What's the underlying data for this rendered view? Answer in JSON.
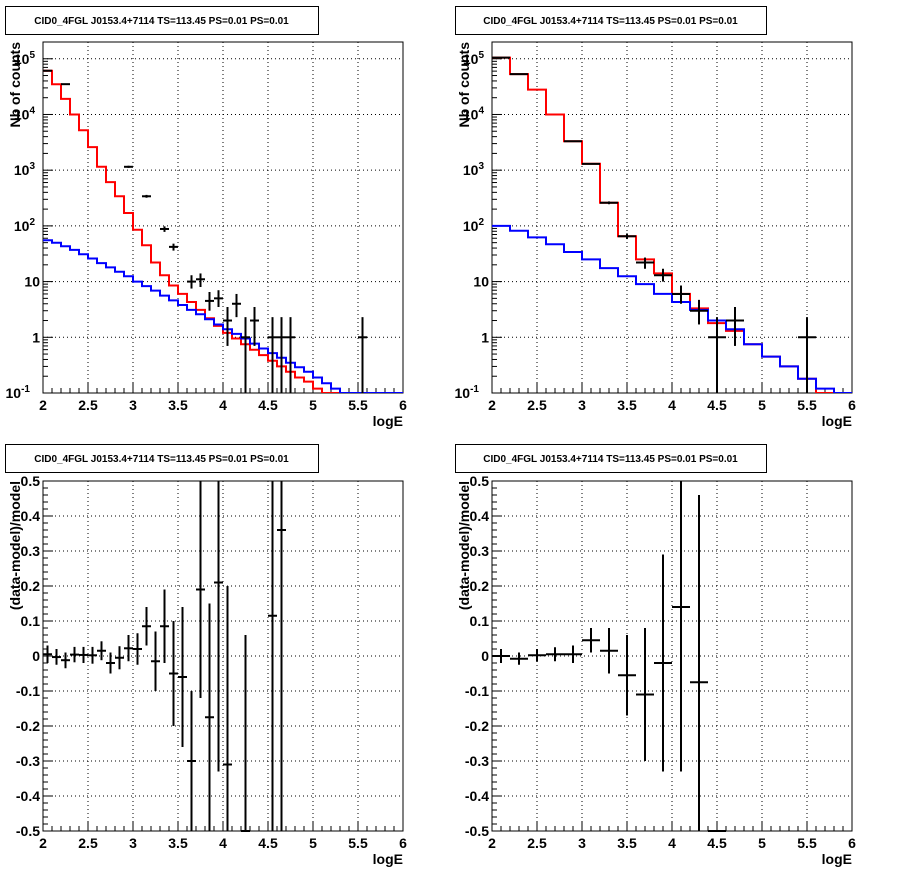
{
  "chart_data": [
    {
      "type": "line",
      "title": "CID0_4FGL J0153.4+7114 TS=113.45 PS=0.01 PS=0.01",
      "xlabel": "logE",
      "ylabel": "Nb of counts",
      "xlim": [
        2,
        6
      ],
      "ylim": [
        0.1,
        200000
      ],
      "yscale": "log",
      "grid": true,
      "xticks": [
        "2",
        "2.5",
        "3",
        "3.5",
        "4",
        "4.5",
        "5",
        "5.5",
        "6"
      ],
      "yticks": [
        {
          "v": 0.1,
          "mant": "10",
          "exp": "-1"
        },
        {
          "v": 1,
          "mant": "1",
          "exp": ""
        },
        {
          "v": 10,
          "mant": "10",
          "exp": ""
        },
        {
          "v": 100,
          "mant": "10",
          "exp": "2"
        },
        {
          "v": 1000,
          "mant": "10",
          "exp": "3"
        },
        {
          "v": 10000,
          "mant": "10",
          "exp": "4"
        },
        {
          "v": 100000,
          "mant": "10",
          "exp": "5"
        }
      ],
      "bin_edges": [
        2.0,
        2.1,
        2.2,
        2.3,
        2.4,
        2.5,
        2.6,
        2.7,
        2.8,
        2.9,
        3.0,
        3.1,
        3.2,
        3.3,
        3.4,
        3.5,
        3.6,
        3.7,
        3.8,
        3.9,
        4.0,
        4.1,
        4.2,
        4.3,
        4.4,
        4.5,
        4.6,
        4.7,
        4.8,
        4.9,
        5.0,
        5.1,
        5.2,
        5.3,
        5.4,
        5.5,
        5.6,
        5.7,
        5.8,
        5.9,
        6.0
      ],
      "series": [
        {
          "color": "#ff0000",
          "values": [
            61000,
            35000,
            19000,
            10000,
            5200,
            2600,
            1150,
            610,
            340,
            170,
            85,
            45,
            22,
            13,
            8.5,
            6,
            4.3,
            3.1,
            2.2,
            1.6,
            1.2,
            0.95,
            0.75,
            0.6,
            0.48,
            0.38,
            0.3,
            0.24,
            0.19,
            0.16,
            0.12,
            0.1,
            0.1
          ]
        },
        {
          "color": "#0000ff",
          "values": [
            55,
            50,
            43,
            37,
            31,
            26,
            21.5,
            18,
            15,
            12.5,
            10,
            8.3,
            6.9,
            5.6,
            4.6,
            3.8,
            3.1,
            2.6,
            2.1,
            1.7,
            1.4,
            1.15,
            0.95,
            0.77,
            0.63,
            0.52,
            0.43,
            0.35,
            0.29,
            0.24,
            0.19,
            0.15,
            0.12,
            0.1,
            0.1,
            0.1,
            0.1,
            0.1,
            0.1,
            0.1
          ]
        }
      ],
      "points": [
        {
          "x": 2.05,
          "y": 61000,
          "lo": 60700,
          "hi": 61300
        },
        {
          "x": 2.25,
          "y": 35000,
          "lo": 34600,
          "hi": 35400
        },
        {
          "x": 2.95,
          "y": 1150,
          "lo": 1100,
          "hi": 1200
        },
        {
          "x": 3.15,
          "y": 340,
          "lo": 320,
          "hi": 360
        },
        {
          "x": 3.35,
          "y": 88,
          "lo": 78,
          "hi": 98
        },
        {
          "x": 3.45,
          "y": 42,
          "lo": 36,
          "hi": 48
        },
        {
          "x": 3.65,
          "y": 10,
          "lo": 7.5,
          "hi": 13
        },
        {
          "x": 3.75,
          "y": 11,
          "lo": 8,
          "hi": 14
        },
        {
          "x": 3.85,
          "y": 4.5,
          "lo": 3,
          "hi": 6.5
        },
        {
          "x": 3.95,
          "y": 5,
          "lo": 3.5,
          "hi": 7
        },
        {
          "x": 4.05,
          "y": 2,
          "lo": 0.7,
          "hi": 3.5
        },
        {
          "x": 4.15,
          "y": 4,
          "lo": 2.3,
          "hi": 6
        },
        {
          "x": 4.25,
          "y": 1,
          "lo": 0.1,
          "hi": 2.3
        },
        {
          "x": 4.35,
          "y": 2,
          "lo": 0.7,
          "hi": 3.5
        },
        {
          "x": 4.55,
          "y": 1,
          "lo": 0.1,
          "hi": 2.3
        },
        {
          "x": 4.65,
          "y": 1,
          "lo": 0.1,
          "hi": 2.3
        },
        {
          "x": 4.75,
          "y": 1,
          "lo": 0.1,
          "hi": 2.3
        },
        {
          "x": 5.55,
          "y": 1,
          "lo": 0.1,
          "hi": 2.3
        }
      ]
    },
    {
      "type": "line",
      "title": "CID0_4FGL J0153.4+7114 TS=113.45 PS=0.01 PS=0.01",
      "xlabel": "logE",
      "ylabel": "Nb of counts",
      "xlim": [
        2,
        6
      ],
      "ylim": [
        0.1,
        200000
      ],
      "yscale": "log",
      "grid": true,
      "xticks": [
        "2",
        "2.5",
        "3",
        "3.5",
        "4",
        "4.5",
        "5",
        "5.5",
        "6"
      ],
      "yticks": [
        {
          "v": 0.1,
          "mant": "10",
          "exp": "-1"
        },
        {
          "v": 1,
          "mant": "1",
          "exp": ""
        },
        {
          "v": 10,
          "mant": "10",
          "exp": ""
        },
        {
          "v": 100,
          "mant": "10",
          "exp": "2"
        },
        {
          "v": 1000,
          "mant": "10",
          "exp": "3"
        },
        {
          "v": 10000,
          "mant": "10",
          "exp": "4"
        },
        {
          "v": 100000,
          "mant": "10",
          "exp": "5"
        }
      ],
      "bin_edges": [
        2.0,
        2.2,
        2.4,
        2.6,
        2.8,
        3.0,
        3.2,
        3.4,
        3.6,
        3.8,
        4.0,
        4.2,
        4.4,
        4.6,
        4.8,
        5.0,
        5.2,
        5.4,
        5.6,
        5.8,
        6.0
      ],
      "series": [
        {
          "color": "#ff0000",
          "values": [
            105000,
            53000,
            28000,
            10000,
            3300,
            1300,
            260,
            65,
            25,
            14,
            6,
            3.3,
            1.8,
            1.3,
            0.75,
            0.45,
            0.3,
            0.18,
            0.1
          ]
        },
        {
          "color": "#0000ff",
          "values": [
            100,
            82,
            62,
            47,
            34,
            25,
            17.5,
            12.5,
            9,
            6,
            4.3,
            3.1,
            2.0,
            1.4,
            0.75,
            0.45,
            0.3,
            0.18,
            0.12,
            0.1
          ]
        }
      ],
      "points": [
        {
          "x": 2.1,
          "y": 105000,
          "lo": 104700,
          "hi": 105300
        },
        {
          "x": 2.3,
          "y": 53000,
          "lo": 52700,
          "hi": 53300
        },
        {
          "x": 2.9,
          "y": 3300,
          "lo": 3250,
          "hi": 3350
        },
        {
          "x": 3.1,
          "y": 1300,
          "lo": 1270,
          "hi": 1330
        },
        {
          "x": 3.3,
          "y": 260,
          "lo": 245,
          "hi": 275
        },
        {
          "x": 3.5,
          "y": 65,
          "lo": 58,
          "hi": 73
        },
        {
          "x": 3.7,
          "y": 22,
          "lo": 17,
          "hi": 27
        },
        {
          "x": 3.9,
          "y": 13,
          "lo": 10,
          "hi": 17
        },
        {
          "x": 4.1,
          "y": 6,
          "lo": 4,
          "hi": 8.5
        },
        {
          "x": 4.3,
          "y": 3,
          "lo": 1.7,
          "hi": 4.7
        },
        {
          "x": 4.5,
          "y": 1,
          "lo": 0.1,
          "hi": 2.3
        },
        {
          "x": 4.7,
          "y": 2,
          "lo": 0.7,
          "hi": 3.5
        },
        {
          "x": 5.5,
          "y": 1,
          "lo": 0.1,
          "hi": 2.3
        }
      ]
    },
    {
      "type": "scatter",
      "title": "CID0_4FGL J0153.4+7114 TS=113.45 PS=0.01 PS=0.01",
      "xlabel": "logE",
      "ylabel": "(data-model)/model",
      "xlim": [
        2,
        6
      ],
      "ylim": [
        -0.5,
        0.5
      ],
      "yscale": "linear",
      "grid": true,
      "xticks": [
        "2",
        "2.5",
        "3",
        "3.5",
        "4",
        "4.5",
        "5",
        "5.5",
        "6"
      ],
      "yticks": [
        "-0.5",
        "-0.4",
        "-0.3",
        "-0.2",
        "-0.1",
        "0",
        "0.1",
        "0.2",
        "0.3",
        "0.4",
        "0.5"
      ],
      "halfwidth": 0.05,
      "points": [
        {
          "x": 2.05,
          "y": 0.005,
          "lo": -0.02,
          "hi": 0.03
        },
        {
          "x": 2.15,
          "y": -0.003,
          "lo": -0.025,
          "hi": 0.02
        },
        {
          "x": 2.25,
          "y": -0.012,
          "lo": -0.035,
          "hi": 0.01
        },
        {
          "x": 2.35,
          "y": 0.004,
          "lo": -0.018,
          "hi": 0.026
        },
        {
          "x": 2.45,
          "y": 0.003,
          "lo": -0.02,
          "hi": 0.026
        },
        {
          "x": 2.55,
          "y": 0.002,
          "lo": -0.022,
          "hi": 0.026
        },
        {
          "x": 2.65,
          "y": 0.015,
          "lo": -0.012,
          "hi": 0.042
        },
        {
          "x": 2.75,
          "y": -0.02,
          "lo": -0.05,
          "hi": 0.01
        },
        {
          "x": 2.85,
          "y": -0.005,
          "lo": -0.038,
          "hi": 0.028
        },
        {
          "x": 2.95,
          "y": 0.022,
          "lo": -0.015,
          "hi": 0.06
        },
        {
          "x": 3.05,
          "y": 0.02,
          "lo": -0.025,
          "hi": 0.065
        },
        {
          "x": 3.15,
          "y": 0.085,
          "lo": 0.03,
          "hi": 0.14
        },
        {
          "x": 3.25,
          "y": -0.015,
          "lo": -0.1,
          "hi": 0.07
        },
        {
          "x": 3.35,
          "y": 0.085,
          "lo": -0.02,
          "hi": 0.19
        },
        {
          "x": 3.45,
          "y": -0.05,
          "lo": -0.2,
          "hi": 0.1
        },
        {
          "x": 3.55,
          "y": -0.06,
          "lo": -0.26,
          "hi": 0.14
        },
        {
          "x": 3.65,
          "y": -0.3,
          "lo": -0.5,
          "hi": -0.1
        },
        {
          "x": 3.75,
          "y": 0.19,
          "lo": -0.12,
          "hi": 0.5
        },
        {
          "x": 3.85,
          "y": -0.175,
          "lo": -0.5,
          "hi": 0.15
        },
        {
          "x": 3.95,
          "y": 0.21,
          "lo": -0.33,
          "hi": 0.5
        },
        {
          "x": 4.05,
          "y": -0.31,
          "lo": -0.5,
          "hi": 0.2
        },
        {
          "x": 4.25,
          "y": -0.5,
          "lo": -0.5,
          "hi": 0.06
        },
        {
          "x": 4.55,
          "y": 0.115,
          "lo": -0.5,
          "hi": 0.5
        },
        {
          "x": 4.65,
          "y": 0.36,
          "lo": -0.5,
          "hi": 0.5
        }
      ]
    },
    {
      "type": "scatter",
      "title": "CID0_4FGL J0153.4+7114 TS=113.45 PS=0.01 PS=0.01",
      "xlabel": "logE",
      "ylabel": "(data-model)/model",
      "xlim": [
        2,
        6
      ],
      "ylim": [
        -0.5,
        0.5
      ],
      "yscale": "linear",
      "grid": true,
      "xticks": [
        "2",
        "2.5",
        "3",
        "3.5",
        "4",
        "4.5",
        "5",
        "5.5",
        "6"
      ],
      "yticks": [
        "-0.5",
        "-0.4",
        "-0.3",
        "-0.2",
        "-0.1",
        "0",
        "0.1",
        "0.2",
        "0.3",
        "0.4",
        "0.5"
      ],
      "halfwidth": 0.1,
      "points": [
        {
          "x": 2.1,
          "y": 0.0,
          "lo": -0.02,
          "hi": 0.02
        },
        {
          "x": 2.3,
          "y": -0.008,
          "lo": -0.025,
          "hi": 0.01
        },
        {
          "x": 2.5,
          "y": 0.002,
          "lo": -0.016,
          "hi": 0.02
        },
        {
          "x": 2.7,
          "y": 0.005,
          "lo": -0.015,
          "hi": 0.025
        },
        {
          "x": 2.9,
          "y": 0.005,
          "lo": -0.02,
          "hi": 0.03
        },
        {
          "x": 3.1,
          "y": 0.045,
          "lo": 0.01,
          "hi": 0.08
        },
        {
          "x": 3.3,
          "y": 0.015,
          "lo": -0.05,
          "hi": 0.08
        },
        {
          "x": 3.5,
          "y": -0.055,
          "lo": -0.17,
          "hi": 0.06
        },
        {
          "x": 3.7,
          "y": -0.11,
          "lo": -0.3,
          "hi": 0.08
        },
        {
          "x": 3.9,
          "y": -0.02,
          "lo": -0.33,
          "hi": 0.29
        },
        {
          "x": 4.1,
          "y": 0.14,
          "lo": -0.33,
          "hi": 0.5
        },
        {
          "x": 4.3,
          "y": -0.075,
          "lo": -0.5,
          "hi": 0.46
        },
        {
          "x": 4.5,
          "y": -0.5,
          "lo": -0.5,
          "hi": -0.5
        }
      ]
    }
  ]
}
